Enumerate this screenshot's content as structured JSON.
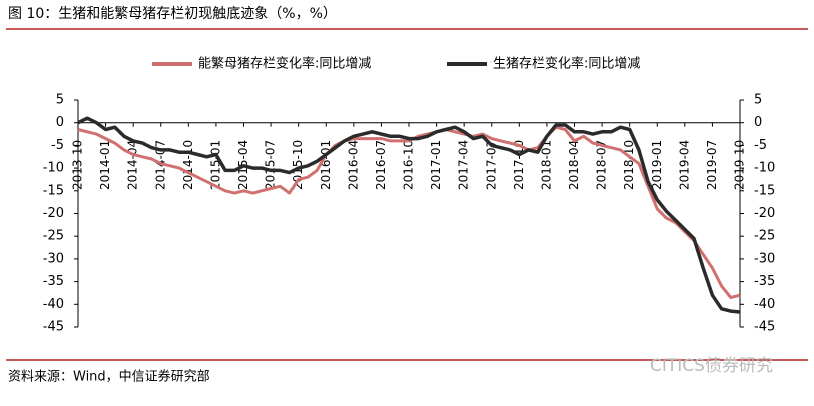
{
  "chart_data": {
    "type": "line",
    "title": "图 10：生猪和能繁母猪存栏初现触底迹象（%，%）",
    "source": "资料来源：Wind，中信证券研究部",
    "watermark": "CITICS债券研究",
    "categories": [
      "2013-10",
      null,
      null,
      "2014-01",
      null,
      null,
      "2014-04",
      null,
      null,
      "2014-07",
      null,
      null,
      "2014-10",
      null,
      null,
      "2015-01",
      null,
      null,
      "2015-04",
      null,
      null,
      "2015-07",
      null,
      null,
      "2015-10",
      null,
      null,
      "2016-01",
      null,
      null,
      "2016-04",
      null,
      null,
      "2016-07",
      null,
      null,
      "2016-10",
      null,
      null,
      "2017-01",
      null,
      null,
      "2017-04",
      null,
      null,
      "2017-07",
      null,
      null,
      "2017-10",
      null,
      null,
      "2018-01",
      null,
      null,
      "2018-04",
      null,
      null,
      "2018-07",
      null,
      null,
      "2018-10",
      null,
      null,
      "2019-01",
      null,
      null,
      "2019-04",
      null,
      null,
      "2019-07",
      null,
      null,
      "2019-10"
    ],
    "series": [
      {
        "name": "能繁母猪存栏变化率:同比增减",
        "color": "#d0706f",
        "values": [
          -1.5,
          -2,
          -2.5,
          -3.5,
          -4.5,
          -6,
          -7,
          -7.5,
          -8,
          -9,
          -9.5,
          -10,
          -11,
          -12,
          -13,
          -14,
          -15,
          -15.5,
          -15,
          -15.5,
          -15,
          -14.5,
          -14,
          -15.5,
          -12.5,
          -12,
          -10.5,
          -7,
          -5,
          -4,
          -3.5,
          -3.5,
          -3.5,
          -3.5,
          -4,
          -4,
          -4,
          -3,
          -2.5,
          -2,
          -1.5,
          -2,
          -2.5,
          -3,
          -2.5,
          -3.5,
          -4,
          -4.5,
          -5,
          -6,
          -5.5,
          -3,
          -1,
          -1.5,
          -4,
          -3,
          -4.5,
          -5,
          -5.5,
          -6,
          -7.5,
          -9,
          -14,
          -19,
          -21,
          -22,
          -24,
          -26,
          -29,
          -32,
          -36,
          -38.5,
          -38
        ]
      },
      {
        "name": "生猪存栏变化率:同比增减",
        "color": "#2b2b2b",
        "values": [
          0,
          1,
          0,
          -1.5,
          -1,
          -3,
          -4,
          -4.5,
          -5.5,
          -6,
          -6,
          -6.5,
          -6.5,
          -7,
          -7.5,
          -7,
          -10.5,
          -10.5,
          -9.5,
          -10,
          -10,
          -10.5,
          -10.5,
          -11,
          -10,
          -9.5,
          -8.5,
          -7,
          -5.5,
          -4,
          -3,
          -2.5,
          -2,
          -2.5,
          -3,
          -3,
          -3.5,
          -3.5,
          -3,
          -2,
          -1.5,
          -1,
          -2,
          -3.5,
          -3,
          -5,
          -5.5,
          -6,
          -7,
          -6,
          -6.5,
          -3,
          -0.5,
          -0.5,
          -2,
          -2,
          -2.5,
          -2,
          -2,
          -1,
          -1.5,
          -6,
          -13,
          -17,
          -19.5,
          -21.5,
          -23.5,
          -25.5,
          -32,
          -38,
          -41,
          -41.5,
          -41.7
        ]
      }
    ],
    "ylim": [
      -45,
      5
    ],
    "yticks": [
      -45,
      -40,
      -35,
      -30,
      -25,
      -20,
      -15,
      -10,
      -5,
      0,
      5
    ],
    "y2lim": [
      -45,
      5
    ],
    "y2ticks": [
      -45,
      -40,
      -35,
      -30,
      -25,
      -20,
      -15,
      -10,
      -5,
      0,
      5
    ]
  }
}
